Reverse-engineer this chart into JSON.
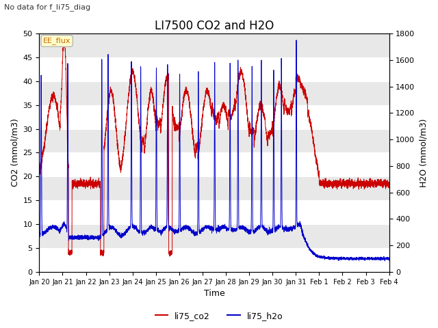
{
  "title": "LI7500 CO2 and H2O",
  "subtitle": "No data for f_li75_diag",
  "xlabel": "Time",
  "ylabel_left": "CO2 (mmol/m3)",
  "ylabel_right": "H2O (mmol/m3)",
  "ylim_left": [
    0,
    50
  ],
  "ylim_right": [
    0,
    1800
  ],
  "legend_labels": [
    "li75_co2",
    "li75_h2o"
  ],
  "co2_color": "#cc0000",
  "h2o_color": "#0000cc",
  "annotation_text": "EE_flux",
  "xtick_labels": [
    "Jan 20",
    "Jan 21",
    "Jan 22",
    "Jan 23",
    "Jan 24",
    "Jan 25",
    "Jan 26",
    "Jan 27",
    "Jan 28",
    "Jan 29",
    "Jan 30",
    "Jan 31",
    "Feb 1",
    "Feb 2",
    "Feb 3",
    "Feb 4"
  ],
  "figsize": [
    6.4,
    4.8
  ],
  "dpi": 100,
  "title_fontsize": 12,
  "label_fontsize": 9,
  "tick_fontsize": 8
}
